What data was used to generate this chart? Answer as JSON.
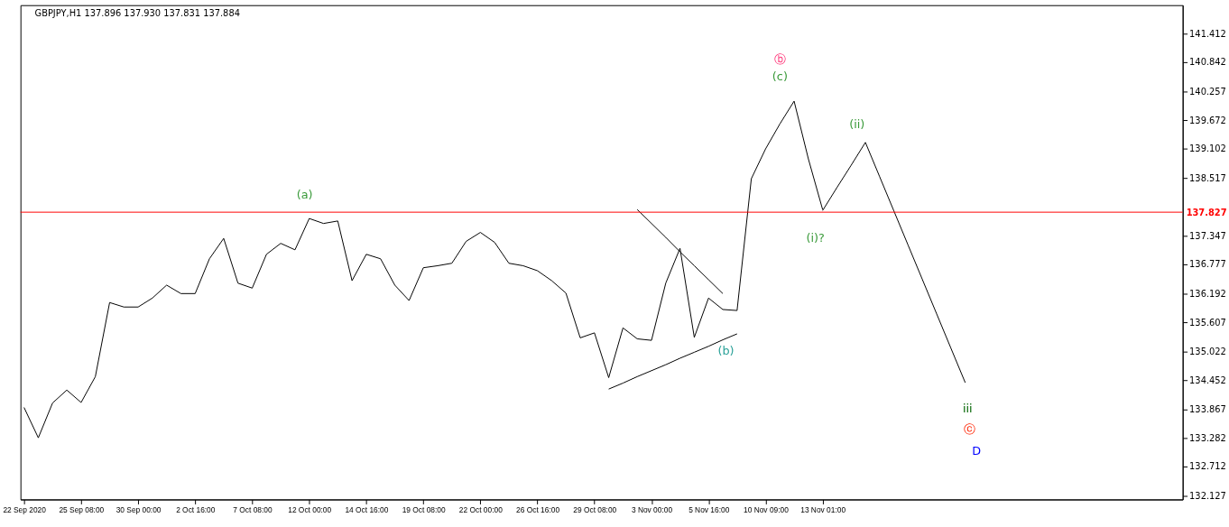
{
  "chart_data": {
    "type": "line",
    "title": "GBPJPY,H1  137.896 137.930 137.831 137.884",
    "categories": [
      "22 Sep 2020",
      null,
      null,
      null,
      "25 Sep 08:00",
      null,
      null,
      null,
      "30 Sep 00:00",
      null,
      null,
      null,
      "2 Oct 16:00",
      null,
      null,
      null,
      "7 Oct 08:00",
      null,
      null,
      null,
      "12 Oct 00:00",
      null,
      null,
      null,
      "14 Oct 16:00",
      null,
      null,
      null,
      "19 Oct 08:00",
      null,
      null,
      null,
      "22 Oct 00:00",
      null,
      null,
      null,
      "26 Oct 16:00",
      null,
      null,
      null,
      "29 Oct 08:00",
      null,
      null,
      null,
      "3 Nov 00:00",
      null,
      null,
      null,
      "5 Nov 16:00",
      null,
      null,
      null,
      "10 Nov 09:00",
      null,
      null,
      null,
      "13 Nov 01:00",
      null,
      null,
      null,
      null,
      null,
      null,
      null,
      null,
      null,
      null,
      null,
      null,
      null,
      null,
      null,
      null,
      null,
      null,
      null,
      null,
      null,
      null,
      null,
      null,
      null
    ],
    "ylim": [
      132.05,
      141.99
    ],
    "yticks": [
      132.127,
      132.712,
      133.282,
      133.867,
      134.452,
      135.022,
      135.607,
      136.192,
      136.777,
      137.347,
      138.517,
      139.102,
      139.672,
      140.257,
      140.842,
      141.412
    ],
    "series": [
      {
        "color": "#000000",
        "values": [
          133.9,
          133.29,
          133.99,
          134.25,
          134.0,
          134.52,
          136.01,
          135.92,
          135.92,
          136.1,
          136.36,
          136.19,
          136.19,
          136.89,
          137.3,
          136.4,
          136.3,
          136.98,
          137.2,
          137.07,
          137.7,
          137.6,
          137.65,
          136.45,
          136.98,
          136.89,
          136.36,
          136.05,
          136.71,
          136.75,
          136.8,
          137.24,
          137.42,
          137.22,
          136.8,
          136.75,
          136.65,
          136.45,
          136.2,
          135.3,
          135.4,
          134.5,
          135.5,
          135.28,
          135.25,
          136.4,
          137.1,
          135.31,
          136.1,
          135.87,
          135.85,
          138.5,
          139.1,
          139.6,
          140.06,
          138.9,
          137.88,
          null,
          null,
          null,
          null,
          null,
          null,
          null,
          null,
          null,
          null,
          null,
          null,
          null,
          null,
          null,
          null,
          null,
          null,
          null,
          null,
          null,
          null,
          null,
          null,
          null
        ]
      },
      {
        "type": "line",
        "color": "#000000",
        "values": [
          null,
          null,
          null,
          null,
          null,
          null,
          null,
          null,
          null,
          null,
          null,
          null,
          null,
          null,
          null,
          null,
          null,
          null,
          null,
          null,
          null,
          null,
          null,
          null,
          null,
          null,
          null,
          null,
          null,
          null,
          null,
          null,
          null,
          null,
          null,
          null,
          null,
          null,
          null,
          null,
          null,
          null,
          null,
          137.88,
          137.6,
          137.32,
          137.03,
          136.75,
          136.47,
          136.19,
          null,
          null,
          null,
          null,
          null,
          null,
          null,
          null,
          null,
          null,
          null,
          null,
          null,
          null,
          null,
          null,
          null,
          null,
          null,
          null,
          null,
          null,
          null,
          null,
          null,
          null,
          null,
          null,
          null,
          null,
          null,
          null
        ]
      },
      {
        "type": "line",
        "color": "#000000",
        "values": [
          null,
          null,
          null,
          null,
          null,
          null,
          null,
          null,
          null,
          null,
          null,
          null,
          null,
          null,
          null,
          null,
          null,
          null,
          null,
          null,
          null,
          null,
          null,
          null,
          null,
          null,
          null,
          null,
          null,
          null,
          null,
          null,
          null,
          null,
          null,
          null,
          null,
          null,
          null,
          null,
          null,
          134.27,
          134.39,
          134.52,
          134.64,
          134.76,
          134.89,
          135.01,
          135.13,
          135.26,
          135.38,
          null,
          null,
          null,
          null,
          null,
          null,
          null,
          null,
          null,
          null,
          null,
          null,
          null,
          null,
          null,
          null,
          null,
          null,
          null,
          null,
          null,
          null,
          null,
          null,
          null,
          null,
          null,
          null,
          null,
          null,
          null
        ]
      },
      {
        "type": "line",
        "color": "#000000",
        "values": [
          null,
          null,
          null,
          null,
          null,
          null,
          null,
          null,
          null,
          null,
          null,
          null,
          null,
          null,
          null,
          null,
          null,
          null,
          null,
          null,
          null,
          null,
          null,
          null,
          null,
          null,
          null,
          null,
          null,
          null,
          null,
          null,
          null,
          null,
          null,
          null,
          null,
          null,
          null,
          null,
          null,
          null,
          null,
          null,
          null,
          null,
          null,
          null,
          null,
          null,
          null,
          null,
          null,
          null,
          null,
          null,
          137.86,
          138.32,
          138.77,
          139.23,
          138.54,
          137.85,
          137.16,
          136.47,
          135.78,
          135.09,
          134.4,
          null,
          null,
          null,
          null,
          null,
          null,
          null,
          null,
          null,
          null,
          null,
          null,
          null,
          null,
          null
        ]
      }
    ],
    "ref_lines": [
      {
        "axis": "y",
        "value": 137.827,
        "label": "137.827",
        "color": "#ff0000"
      }
    ],
    "annotations": [
      "(a)",
      "(b)",
      "(c)",
      "ⓑ",
      "(ii)",
      "(i)?",
      "iii",
      "ⓒ",
      "D"
    ]
  }
}
